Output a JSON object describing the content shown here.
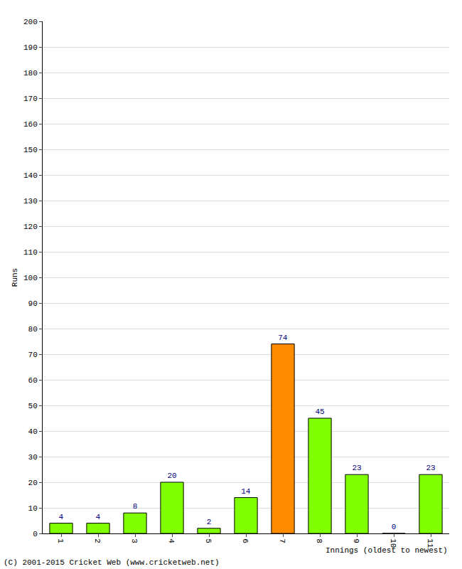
{
  "chart_data": {
    "type": "bar",
    "categories": [
      "1",
      "2",
      "3",
      "4",
      "5",
      "6",
      "7",
      "8",
      "9",
      "10",
      "11"
    ],
    "values": [
      4,
      4,
      8,
      20,
      2,
      14,
      74,
      45,
      23,
      0,
      23
    ],
    "colors": [
      "#80ff00",
      "#80ff00",
      "#80ff00",
      "#80ff00",
      "#80ff00",
      "#80ff00",
      "#ff8c00",
      "#80ff00",
      "#80ff00",
      "#80ff00",
      "#80ff00"
    ],
    "xlabel": "Innings (oldest to newest)",
    "ylabel": "Runs",
    "annotations": [
      "(C) 2001-2015 Cricket Web (www.cricketweb.net)"
    ],
    "ylim": [
      0,
      200
    ],
    "yticks": [
      0,
      10,
      20,
      30,
      40,
      50,
      60,
      70,
      80,
      90,
      100,
      110,
      120,
      130,
      140,
      150,
      160,
      170,
      180,
      190,
      200
    ],
    "grid": true,
    "data_labels": true
  }
}
